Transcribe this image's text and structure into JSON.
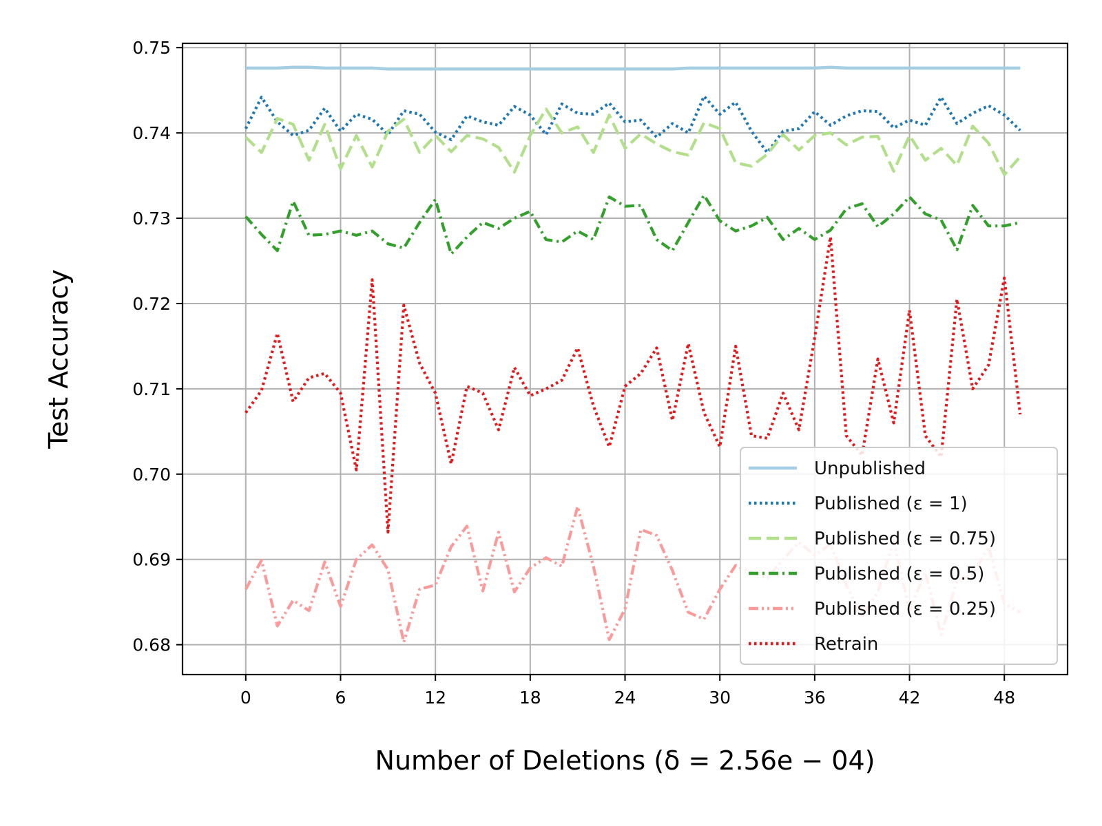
{
  "chart_data": {
    "type": "line",
    "title": "",
    "xlabel": "Number of Deletions (δ = 2.56e − 04)",
    "ylabel": "Test Accuracy",
    "xlim": [
      -4,
      52
    ],
    "ylim": [
      0.6765,
      0.7505
    ],
    "xticks": [
      0,
      6,
      12,
      18,
      24,
      30,
      36,
      42,
      48
    ],
    "xtick_labels": [
      "0",
      "6",
      "12",
      "18",
      "24",
      "30",
      "36",
      "42",
      "48"
    ],
    "yticks": [
      0.68,
      0.69,
      0.7,
      0.71,
      0.72,
      0.73,
      0.74,
      0.75
    ],
    "ytick_labels": [
      "0.68",
      "0.69",
      "0.70",
      "0.71",
      "0.72",
      "0.73",
      "0.74",
      "0.75"
    ],
    "grid": true,
    "legend_position": "bottom-right",
    "x": [
      0,
      1,
      2,
      3,
      4,
      5,
      6,
      7,
      8,
      9,
      10,
      11,
      12,
      13,
      14,
      15,
      16,
      17,
      18,
      19,
      20,
      21,
      22,
      23,
      24,
      25,
      26,
      27,
      28,
      29,
      30,
      31,
      32,
      33,
      34,
      35,
      36,
      37,
      38,
      39,
      40,
      41,
      42,
      43,
      44,
      45,
      46,
      47,
      48,
      49
    ],
    "series": [
      {
        "name": "Unpublished",
        "color": "#a6cee3",
        "dash": "solid",
        "values": [
          0.7476,
          0.7476,
          0.7476,
          0.7477,
          0.7477,
          0.7476,
          0.7476,
          0.7476,
          0.7476,
          0.7475,
          0.7475,
          0.7475,
          0.7475,
          0.7475,
          0.7475,
          0.7475,
          0.7475,
          0.7475,
          0.7475,
          0.7475,
          0.7475,
          0.7475,
          0.7475,
          0.7475,
          0.7475,
          0.7475,
          0.7475,
          0.7475,
          0.7476,
          0.7476,
          0.7476,
          0.7476,
          0.7476,
          0.7476,
          0.7476,
          0.7476,
          0.7476,
          0.7477,
          0.7476,
          0.7476,
          0.7476,
          0.7476,
          0.7476,
          0.7476,
          0.7476,
          0.7476,
          0.7476,
          0.7476,
          0.7476,
          0.7476
        ]
      },
      {
        "name": "Published (ε = 1)",
        "color": "#1f78b4",
        "dash": "dotted",
        "values": [
          0.7405,
          0.7442,
          0.7413,
          0.7397,
          0.7403,
          0.7429,
          0.7402,
          0.7422,
          0.7416,
          0.7398,
          0.7426,
          0.7422,
          0.7401,
          0.7392,
          0.742,
          0.7413,
          0.7409,
          0.7431,
          0.7421,
          0.7398,
          0.7434,
          0.7423,
          0.7422,
          0.7435,
          0.7413,
          0.7415,
          0.7395,
          0.7411,
          0.74,
          0.7443,
          0.7422,
          0.7436,
          0.7402,
          0.7377,
          0.7402,
          0.7405,
          0.7425,
          0.7409,
          0.742,
          0.7426,
          0.7425,
          0.7406,
          0.7415,
          0.7409,
          0.7442,
          0.7411,
          0.7423,
          0.7432,
          0.7421,
          0.7403
        ]
      },
      {
        "name": "Published (ε = 0.75)",
        "color": "#b2df8a",
        "dash": "dashed",
        "values": [
          0.7395,
          0.7377,
          0.7417,
          0.741,
          0.7368,
          0.741,
          0.7358,
          0.7397,
          0.736,
          0.7402,
          0.7416,
          0.7377,
          0.7397,
          0.7378,
          0.7397,
          0.7393,
          0.7383,
          0.7354,
          0.7397,
          0.7428,
          0.74,
          0.7407,
          0.7377,
          0.7421,
          0.7382,
          0.7399,
          0.7387,
          0.7378,
          0.7374,
          0.7412,
          0.7405,
          0.7365,
          0.7361,
          0.7375,
          0.7398,
          0.738,
          0.7397,
          0.74,
          0.7386,
          0.7395,
          0.7396,
          0.7355,
          0.7397,
          0.7368,
          0.7382,
          0.7362,
          0.7408,
          0.7388,
          0.7351,
          0.7372
        ]
      },
      {
        "name": "Published (ε = 0.5)",
        "color": "#33a02c",
        "dash": "dashdot",
        "values": [
          0.7302,
          0.7281,
          0.7262,
          0.732,
          0.728,
          0.7281,
          0.7285,
          0.728,
          0.7285,
          0.727,
          0.7265,
          0.7295,
          0.7322,
          0.7258,
          0.7278,
          0.7295,
          0.7288,
          0.73,
          0.7308,
          0.7275,
          0.7272,
          0.7285,
          0.7275,
          0.7325,
          0.7314,
          0.7315,
          0.7275,
          0.7262,
          0.7295,
          0.7327,
          0.7297,
          0.7285,
          0.7291,
          0.7301,
          0.7275,
          0.7288,
          0.7275,
          0.7286,
          0.7311,
          0.7317,
          0.729,
          0.7305,
          0.7325,
          0.7305,
          0.7298,
          0.7263,
          0.7315,
          0.7291,
          0.7291,
          0.7295
        ]
      },
      {
        "name": "Published (ε = 0.25)",
        "color": "#fb9a99",
        "dash": "dashdotdot",
        "values": [
          0.6865,
          0.6899,
          0.6822,
          0.6852,
          0.684,
          0.6897,
          0.6845,
          0.69,
          0.6917,
          0.6888,
          0.6803,
          0.6865,
          0.687,
          0.6915,
          0.6939,
          0.6863,
          0.6932,
          0.6862,
          0.689,
          0.6902,
          0.6892,
          0.6962,
          0.6892,
          0.6806,
          0.6842,
          0.6935,
          0.6928,
          0.6887,
          0.6838,
          0.683,
          0.6865,
          0.6893,
          0.6885,
          0.6878,
          0.69,
          0.692,
          0.6905,
          0.6918,
          0.687,
          0.6832,
          0.6862,
          0.6922,
          0.684,
          0.6885,
          0.6812,
          0.6875,
          0.6882,
          0.6915,
          0.6848,
          0.6838
        ]
      },
      {
        "name": "Retrain",
        "color": "#e31a1c",
        "dash": "dotted",
        "values": [
          0.7072,
          0.7098,
          0.7165,
          0.7085,
          0.7113,
          0.7118,
          0.7095,
          0.7005,
          0.7228,
          0.6932,
          0.7198,
          0.713,
          0.7095,
          0.7012,
          0.7103,
          0.7095,
          0.7052,
          0.7125,
          0.7092,
          0.71,
          0.711,
          0.7148,
          0.708,
          0.7032,
          0.7103,
          0.7118,
          0.7148,
          0.7063,
          0.7153,
          0.7072,
          0.7032,
          0.715,
          0.7045,
          0.7042,
          0.7095,
          0.7052,
          0.716,
          0.7278,
          0.7045,
          0.7022,
          0.7135,
          0.706,
          0.7192,
          0.7045,
          0.702,
          0.7205,
          0.71,
          0.7128,
          0.723,
          0.707
        ]
      }
    ]
  }
}
